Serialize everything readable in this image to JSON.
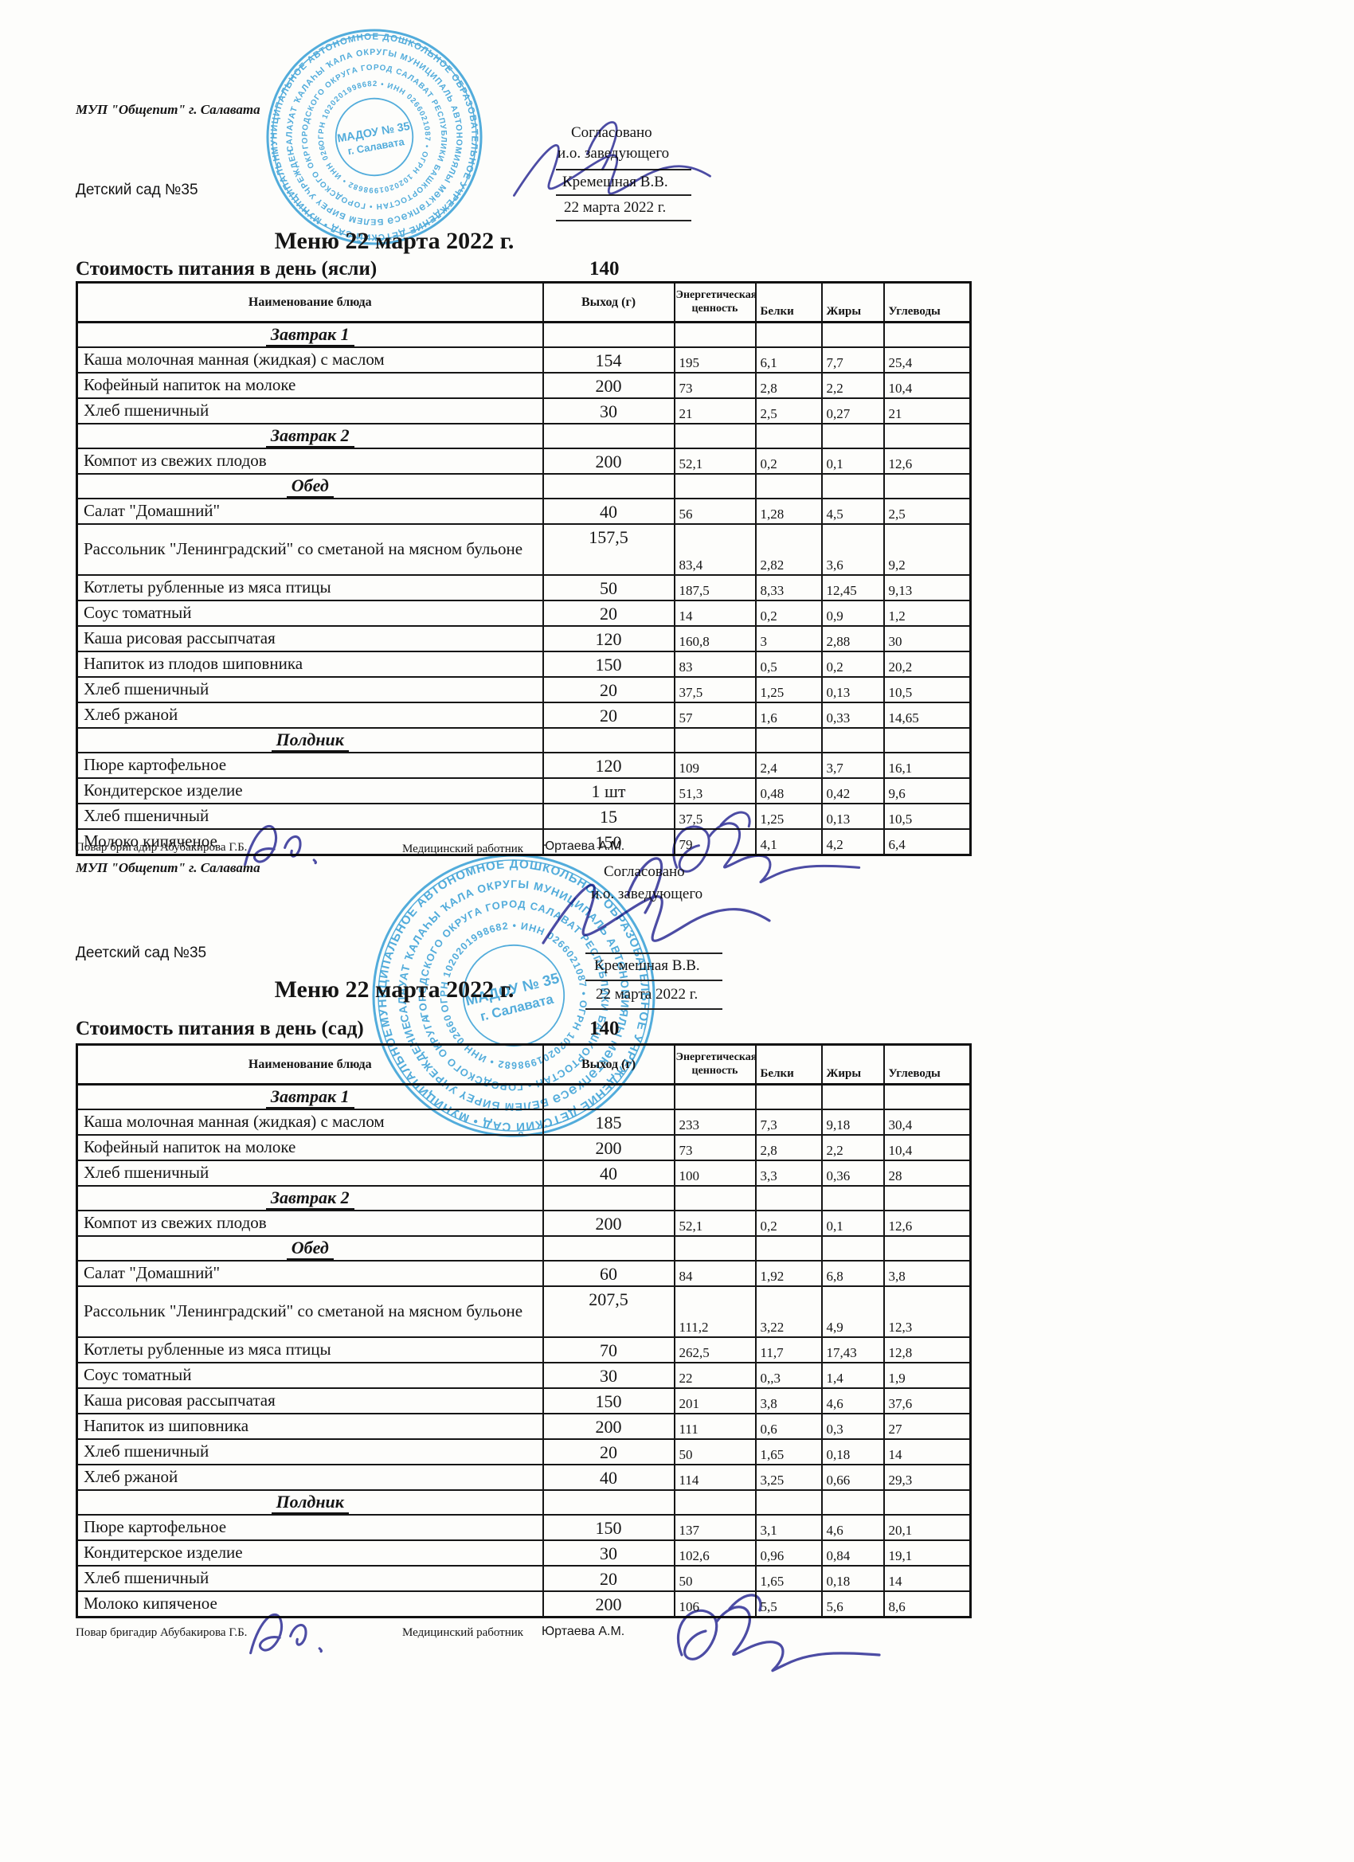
{
  "columns": {
    "name": "Наименование блюда",
    "portion": "Выход (г)",
    "energy": "Энергетическая ценность",
    "protein": "Белки",
    "fat": "Жиры",
    "carbs": "Углеводы"
  },
  "stamp": {
    "center_line1": "МАДОУ № 35",
    "center_line2": "г. Салавата",
    "ring_texts": [
      "МУНИЦИПАЛЬНОЕ АВТОНОМНОЕ ДОШКОЛЬНОЕ ОБРАЗОВАТЕЛЬНОЕ УЧРЕЖДЕНИЕ ДЕТСКИЙ САД",
      "САЛАУАТ ҠАЛАҺЫ ҠАЛА ОКРУГЫ МУНИЦИПАЛЬ АВТОНОМИЯЛЫ МӘКТӘПКӘСӘ БЕЛЕМ БИРЕҮ УЧРЕЖДЕНИЕҺЫ",
      "ГОРОДСКОГО ОКРУГА ГОРОД САЛАВАТ РЕСПУБЛИКИ БАШКОРТОСТАН",
      "ОГРН 1020201998682 • ИНН 0266021087"
    ],
    "ink_color": "#2b9cd8"
  },
  "menus": [
    {
      "org": "МУП \"Общепит\" г. Салавата",
      "facility": "Детский сад №35",
      "approval": {
        "agreed": "Согласовано",
        "role": "и.о. заведующего",
        "name": "Кремешная В.В.",
        "date": "22 марта 2022 г."
      },
      "title": "Меню 22 марта 2022 г.",
      "cost_label": "Стоимость питания в день (ясли)",
      "cost_value": "140",
      "rows": [
        {
          "type": "section",
          "label": "Завтрак 1"
        },
        {
          "type": "dish",
          "name": "Каша молочная манная (жидкая) с маслом",
          "portion": "154",
          "energy": "195",
          "protein": "6,1",
          "fat": "7,7",
          "carbs": "25,4"
        },
        {
          "type": "dish",
          "name": "Кофейный напиток на молоке",
          "portion": "200",
          "energy": "73",
          "protein": "2,8",
          "fat": "2,2",
          "carbs": "10,4"
        },
        {
          "type": "dish",
          "name": "Хлеб пшеничный",
          "portion": "30",
          "energy": "21",
          "protein": "2,5",
          "fat": "0,27",
          "carbs": "21"
        },
        {
          "type": "section",
          "label": "Завтрак 2"
        },
        {
          "type": "dish",
          "name": "Компот из свежих плодов",
          "portion": "200",
          "energy": "52,1",
          "protein": "0,2",
          "fat": "0,1",
          "carbs": "12,6"
        },
        {
          "type": "section",
          "label": "Обед"
        },
        {
          "type": "dish",
          "name": "Салат \"Домашний\"",
          "portion": "40",
          "energy": "56",
          "protein": "1,28",
          "fat": "4,5",
          "carbs": "2,5"
        },
        {
          "type": "dish",
          "tall": true,
          "name": "Рассольник \"Ленинградский\" со сметаной на мясном бульоне",
          "portion": "157,5",
          "energy": "83,4",
          "protein": "2,82",
          "fat": "3,6",
          "carbs": "9,2"
        },
        {
          "type": "dish",
          "name": "Котлеты рубленные из мяса птицы",
          "portion": "50",
          "energy": "187,5",
          "protein": "8,33",
          "fat": "12,45",
          "carbs": "9,13"
        },
        {
          "type": "dish",
          "name": "Соус томатный",
          "portion": "20",
          "energy": "14",
          "protein": "0,2",
          "fat": "0,9",
          "carbs": "1,2"
        },
        {
          "type": "dish",
          "name": "Каша рисовая рассыпчатая",
          "portion": "120",
          "energy": "160,8",
          "protein": "3",
          "fat": "2,88",
          "carbs": "30"
        },
        {
          "type": "dish",
          "name": "Напиток из плодов шиповника",
          "portion": "150",
          "energy": "83",
          "protein": "0,5",
          "fat": "0,2",
          "carbs": "20,2"
        },
        {
          "type": "dish",
          "name": "Хлеб пшеничный",
          "portion": "20",
          "energy": "37,5",
          "protein": "1,25",
          "fat": "0,13",
          "carbs": "10,5"
        },
        {
          "type": "dish",
          "name": "Хлеб ржаной",
          "portion": "20",
          "energy": "57",
          "protein": "1,6",
          "fat": "0,33",
          "carbs": "14,65"
        },
        {
          "type": "section",
          "label": "Полдник"
        },
        {
          "type": "dish",
          "name": "Пюре картофельное",
          "portion": "120",
          "energy": "109",
          "protein": "2,4",
          "fat": "3,7",
          "carbs": "16,1"
        },
        {
          "type": "dish",
          "name": "Кондитерское изделие",
          "portion": "1 шт",
          "energy": "51,3",
          "protein": "0,48",
          "fat": "0,42",
          "carbs": "9,6"
        },
        {
          "type": "dish",
          "name": "Хлеб пшеничный",
          "portion": "15",
          "energy": "37,5",
          "protein": "1,25",
          "fat": "0,13",
          "carbs": "10,5"
        },
        {
          "type": "dish",
          "name": "Молоко кипяченое",
          "portion": "150",
          "energy": "79",
          "protein": "4,1",
          "fat": "4,2",
          "carbs": "6,4"
        }
      ],
      "footer": {
        "cook_label": "Повар бригадир Абубакирова Г.Б.",
        "medic_label": "Медицинский работник",
        "medic_name": "Юртаева А.М."
      }
    },
    {
      "org": "МУП \"Общепит\" г. Салавата",
      "facility": "Деетский сад №35",
      "approval": {
        "agreed": "Согласовано",
        "role": "и.о. заведующего",
        "name": "Кремешная В.В.",
        "date": "22 марта 2022 г."
      },
      "title": "Меню 22 марта 2022 г.",
      "cost_label": "Стоимость питания в день (сад)",
      "cost_value": "140",
      "rows": [
        {
          "type": "section",
          "label": "Завтрак 1"
        },
        {
          "type": "dish",
          "name": "Каша молочная манная (жидкая) с маслом",
          "portion": "185",
          "energy": "233",
          "protein": "7,3",
          "fat": "9,18",
          "carbs": "30,4"
        },
        {
          "type": "dish",
          "name": "Кофейный напиток на молоке",
          "portion": "200",
          "energy": "73",
          "protein": "2,8",
          "fat": "2,2",
          "carbs": "10,4"
        },
        {
          "type": "dish",
          "name": "Хлеб пшеничный",
          "portion": "40",
          "energy": "100",
          "protein": "3,3",
          "fat": "0,36",
          "carbs": "28"
        },
        {
          "type": "section",
          "label": "Завтрак 2"
        },
        {
          "type": "dish",
          "name": "Компот из свежих плодов",
          "portion": "200",
          "energy": "52,1",
          "protein": "0,2",
          "fat": "0,1",
          "carbs": "12,6"
        },
        {
          "type": "section",
          "label": "Обед"
        },
        {
          "type": "dish",
          "name": "Салат \"Домашний\"",
          "portion": "60",
          "energy": "84",
          "protein": "1,92",
          "fat": "6,8",
          "carbs": "3,8"
        },
        {
          "type": "dish",
          "tall": true,
          "name": "Рассольник \"Ленинградский\" со сметаной на мясном бульоне",
          "portion": "207,5",
          "energy": "111,2",
          "protein": "3,22",
          "fat": "4,9",
          "carbs": "12,3"
        },
        {
          "type": "dish",
          "name": "Котлеты рубленные из мяса птицы",
          "portion": "70",
          "energy": "262,5",
          "protein": "11,7",
          "fat": "17,43",
          "carbs": "12,8"
        },
        {
          "type": "dish",
          "name": "Соус томатный",
          "portion": "30",
          "energy": "22",
          "protein": "0,,3",
          "fat": "1,4",
          "carbs": "1,9"
        },
        {
          "type": "dish",
          "name": "Каша рисовая рассыпчатая",
          "portion": "150",
          "energy": "201",
          "protein": "3,8",
          "fat": "4,6",
          "carbs": "37,6"
        },
        {
          "type": "dish",
          "name": "Напиток из шиповника",
          "portion": "200",
          "energy": "111",
          "protein": "0,6",
          "fat": "0,3",
          "carbs": "27"
        },
        {
          "type": "dish",
          "name": "Хлеб пшеничный",
          "portion": "20",
          "energy": "50",
          "protein": "1,65",
          "fat": "0,18",
          "carbs": "14"
        },
        {
          "type": "dish",
          "name": "Хлеб ржаной",
          "portion": "40",
          "energy": "114",
          "protein": "3,25",
          "fat": "0,66",
          "carbs": "29,3"
        },
        {
          "type": "section",
          "label": "Полдник"
        },
        {
          "type": "dish",
          "name": "Пюре картофельное",
          "portion": "150",
          "energy": "137",
          "protein": "3,1",
          "fat": "4,6",
          "carbs": "20,1"
        },
        {
          "type": "dish",
          "name": "Кондитерское изделие",
          "portion": "30",
          "energy": "102,6",
          "protein": "0,96",
          "fat": "0,84",
          "carbs": "19,1"
        },
        {
          "type": "dish",
          "name": "Хлеб пшеничный",
          "portion": "20",
          "energy": "50",
          "protein": "1,65",
          "fat": "0,18",
          "carbs": "14"
        },
        {
          "type": "dish",
          "name": "Молоко кипяченое",
          "portion": "200",
          "energy": "106",
          "protein": "5,5",
          "fat": "5,6",
          "carbs": "8,6"
        }
      ],
      "footer": {
        "cook_label": "Повар бригадир Абубакирова Г.Б.",
        "medic_label": "Медицинский работник",
        "medic_name": "Юртаева А.М."
      }
    }
  ]
}
